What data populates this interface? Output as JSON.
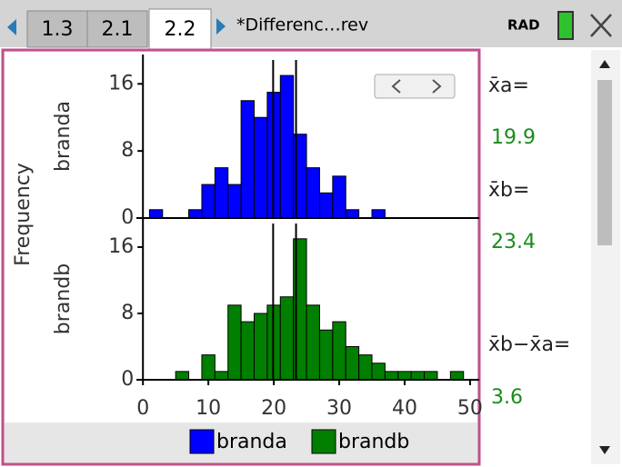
{
  "tabs": [
    "1.3",
    "2.1",
    "2.2"
  ],
  "document_title": "*Differenc…rev",
  "angle_mode": "RAD",
  "shared_ylabel": "Frequency",
  "chart_data": [
    {
      "type": "histogram",
      "name": "branda",
      "color": "#0000ff",
      "bins": [
        1,
        3,
        5,
        7,
        9,
        11,
        13,
        15,
        17,
        19,
        21,
        23,
        25,
        27,
        29,
        31,
        33,
        35,
        37,
        39,
        41,
        43,
        45,
        47,
        49
      ],
      "values": [
        1,
        0,
        0,
        1,
        4,
        6,
        4,
        14,
        12,
        15,
        17,
        10,
        6,
        3,
        5,
        1,
        0,
        1,
        0,
        0,
        0,
        0,
        0,
        0
      ],
      "xlim": [
        -1,
        51.4
      ],
      "ylim": [
        0,
        19.5
      ],
      "yticks": [
        0,
        8,
        16
      ]
    },
    {
      "type": "histogram",
      "name": "brandb",
      "color": "#007f00",
      "bins": [
        1,
        3,
        5,
        7,
        9,
        11,
        13,
        15,
        17,
        19,
        21,
        23,
        25,
        27,
        29,
        31,
        33,
        35,
        37,
        39,
        41,
        43,
        45,
        47,
        49
      ],
      "values": [
        0,
        0,
        1,
        0,
        3,
        1,
        9,
        7,
        8,
        9,
        10,
        17,
        9,
        6,
        7,
        4,
        3,
        2,
        1,
        1,
        1,
        1,
        0,
        1
      ],
      "xlim": [
        -1,
        51.4
      ],
      "ylim": [
        0,
        19.5
      ],
      "yticks": [
        0,
        8,
        16
      ],
      "xticks": [
        0,
        10,
        20,
        30,
        40,
        50
      ]
    }
  ],
  "statistics": [
    {
      "label": "x̄a=",
      "value": 19.9
    },
    {
      "label": "x̄b=",
      "value": 23.4
    },
    {
      "label": "x̄b−x̄a=",
      "value": 3.6
    }
  ]
}
